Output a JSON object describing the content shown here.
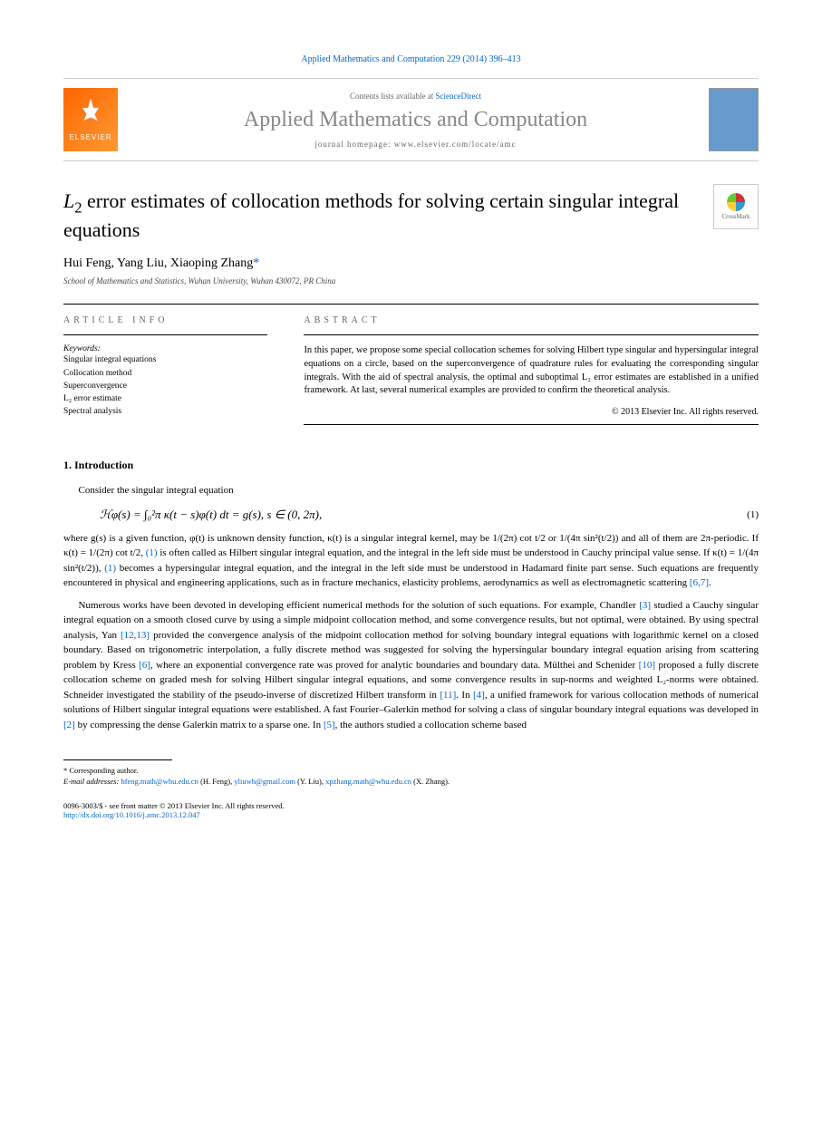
{
  "header": {
    "journal_citation": "Applied Mathematics and Computation 229 (2014) 396–413",
    "contents_prefix": "Contents lists available at ",
    "contents_link": "ScienceDirect",
    "journal_name": "Applied Mathematics and Computation",
    "homepage_prefix": "journal homepage: ",
    "homepage_url": "www.elsevier.com/locate/amc",
    "elsevier_label": "ELSEVIER"
  },
  "crossmark": {
    "label": "CrossMark"
  },
  "title": {
    "prefix": "L",
    "sub": "2",
    "rest": " error estimates of collocation methods for solving certain singular integral equations"
  },
  "authors": {
    "list": "Hui Feng, Yang Liu, Xiaoping Zhang",
    "star": "*"
  },
  "affiliation": "School of Mathematics and Statistics, Wuhan University, Wuhan 430072, PR China",
  "labels": {
    "article_info": "ARTICLE INFO",
    "abstract": "ABSTRACT",
    "keywords": "Keywords:"
  },
  "keywords": [
    "Singular integral equations",
    "Collocation method",
    "Superconvergence",
    "L₂ error estimate",
    "Spectral analysis"
  ],
  "abstract": "In this paper, we propose some special collocation schemes for solving Hilbert type singular and hypersingular integral equations on a circle, based on the superconvergence of quadrature rules for evaluating the corresponding singular integrals. With the aid of spectral analysis, the optimal and suboptimal L₂ error estimates are established in a unified framework. At last, several numerical examples are provided to confirm the theoretical analysis.",
  "copyright": "© 2013 Elsevier Inc. All rights reserved.",
  "section1": {
    "heading": "1. Introduction",
    "para1": "Consider the singular integral equation",
    "equation": "ℋφ(s) = ∫₀²π κ(t − s)φ(t) dt = g(s),    s ∈ (0, 2π),",
    "eq_num": "(1)",
    "para2_a": "where g(s) is a given function, φ(t) is unknown density function, κ(t) is a singular integral kernel, may be ",
    "para2_frac1": "1/(2π) cot t/2",
    "para2_b": " or ",
    "para2_frac2": "1/(4π sin²(t/2))",
    "para2_c": " and all of them are 2π-periodic. If κ(t) = 1/(2π) cot t/2, ",
    "para2_ref1": "(1)",
    "para2_d": " is often called as Hilbert singular integral equation, and the integral in the left side must be understood in Cauchy principal value sense. If κ(t) = 1/(4π sin²(t/2)), ",
    "para2_ref2": "(1)",
    "para2_e": " becomes a hypersingular integral equation, and the integral in the left side must be understood in Hadamard finite part sense. Such equations are frequently encountered in physical and engineering applications, such as in fracture mechanics, elasticity problems, aerodynamics as well as electromagnetic scattering ",
    "para2_ref3": "[6,7]",
    "para2_f": ".",
    "para3_a": "Numerous works have been devoted in developing efficient numerical methods for the solution of such equations. For example, Chandler ",
    "para3_ref1": "[3]",
    "para3_b": " studied a Cauchy singular integral equation on a smooth closed curve by using a simple midpoint collocation method, and some convergence results, but not optimal, were obtained. By using spectral analysis, Yan ",
    "para3_ref2": "[12,13]",
    "para3_c": " provided the convergence analysis of the midpoint collocation method for solving boundary integral equations with logarithmic kernel on a closed boundary. Based on trigonometric interpolation, a fully discrete method was suggested for solving the hypersingular boundary integral equation arising from scattering problem by Kress ",
    "para3_ref3": "[6]",
    "para3_d": ", where an exponential convergence rate was proved for analytic boundaries and boundary data. Mülthei and Schenider ",
    "para3_ref4": "[10]",
    "para3_e": " proposed a fully discrete collocation scheme on graded mesh for solving Hilbert singular integral equations, and some convergence results in sup-norms and weighted L₂-norms were obtained. Schneider investigated the stability of the pseudo-inverse of discretized Hilbert transform in ",
    "para3_ref5": "[11]",
    "para3_f": ". In ",
    "para3_ref6": "[4]",
    "para3_g": ", a unified framework for various collocation methods of numerical solutions of Hilbert singular integral equations were established. A fast Fourier–Galerkin method for solving a class of singular boundary integral equations was developed in ",
    "para3_ref7": "[2]",
    "para3_h": " by compressing the dense Galerkin matrix to a sparse one. In ",
    "para3_ref8": "[5]",
    "para3_i": ", the authors studied a collocation scheme based"
  },
  "footnotes": {
    "corresponding": "* Corresponding author.",
    "email_label": "E-mail addresses: ",
    "emails": [
      {
        "addr": "hfeng.math@whu.edu.cn",
        "name": " (H. Feng), "
      },
      {
        "addr": "yliuwh@gmail.com",
        "name": " (Y. Liu), "
      },
      {
        "addr": "xpzhang.math@whu.edu.cn",
        "name": " (X. Zhang)."
      }
    ]
  },
  "footer": {
    "line1": "0096-3003/$ - see front matter © 2013 Elsevier Inc. All rights reserved.",
    "doi": "http://dx.doi.org/10.1016/j.amc.2013.12.047"
  },
  "colors": {
    "link": "#0066cc",
    "elsevier_orange": "#ff6600",
    "journal_grey": "#888888"
  }
}
